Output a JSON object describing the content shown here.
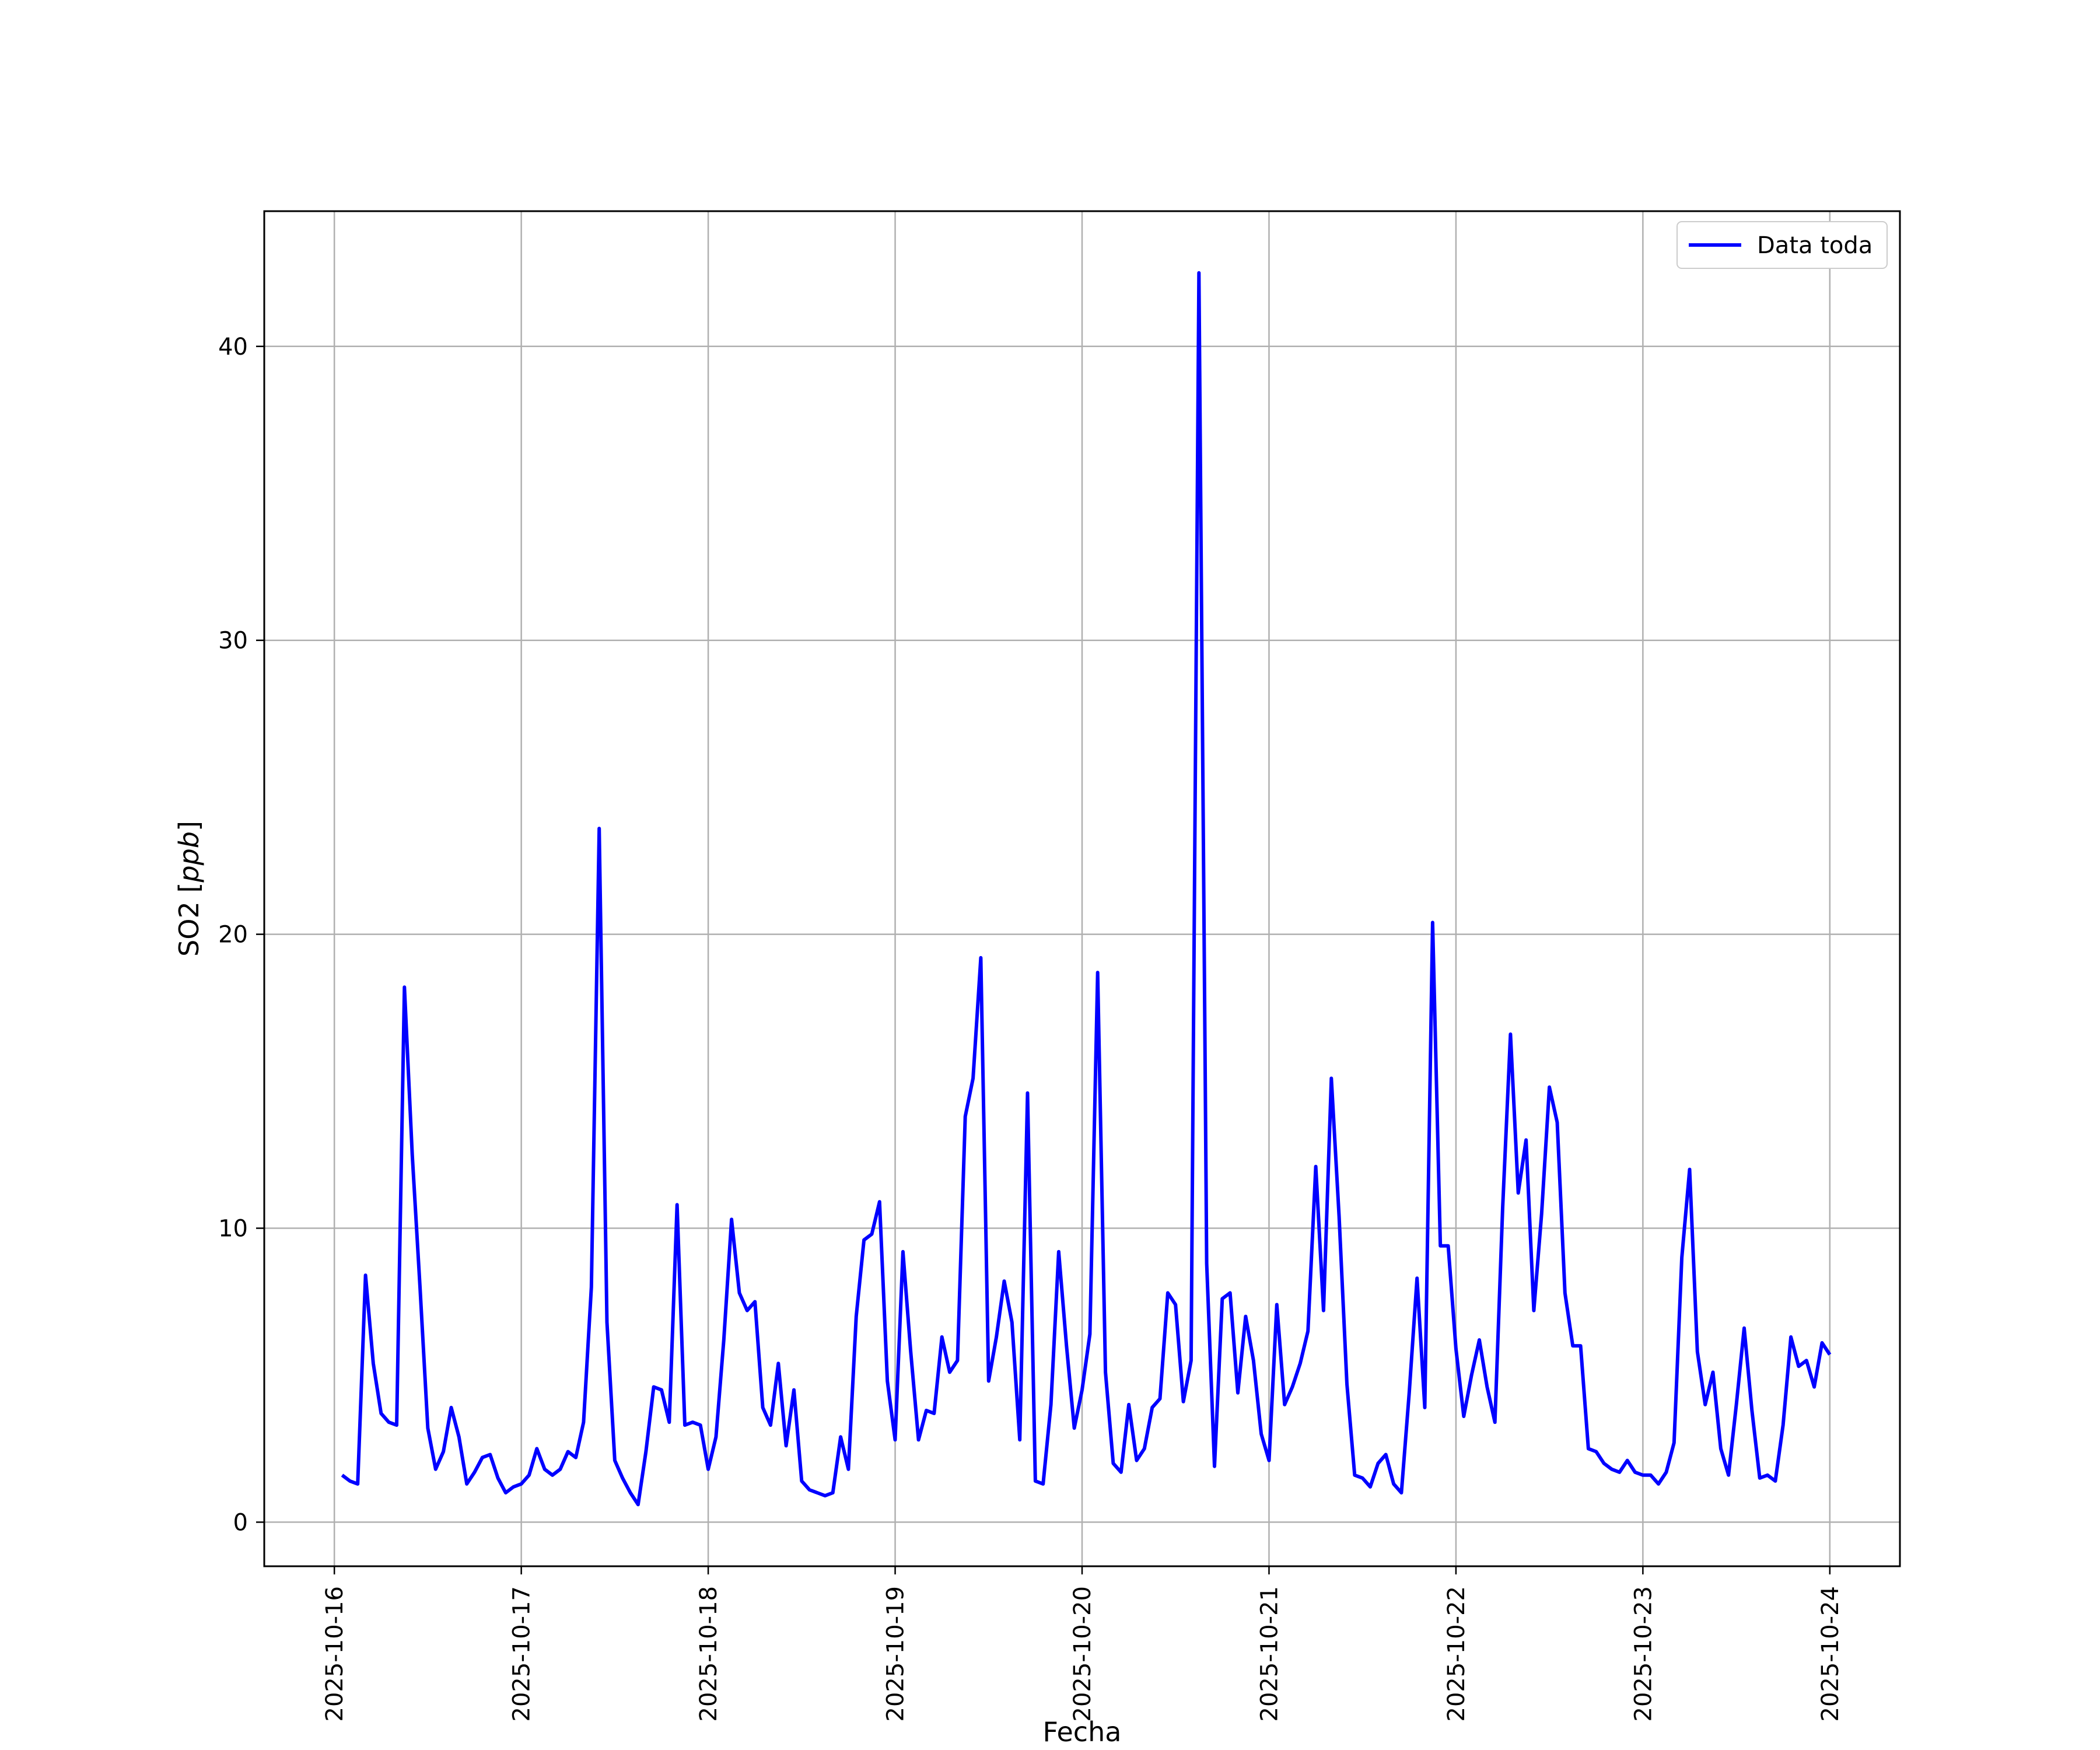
{
  "chart_data": {
    "type": "line",
    "xlabel": "Fecha",
    "ylabel": "SO2 [ppb]",
    "ylabel_parts": {
      "prefix": "SO2 [",
      "unit": "ppb",
      "suffix": "]"
    },
    "xlim": [
      "2025-10-15T15:00",
      "2025-10-24T09:00"
    ],
    "ylim": [
      -1.5,
      44.6
    ],
    "x_ticks": [
      "2025-10-16",
      "2025-10-17",
      "2025-10-18",
      "2025-10-19",
      "2025-10-20",
      "2025-10-21",
      "2025-10-22",
      "2025-10-23",
      "2025-10-24"
    ],
    "y_ticks": [
      0,
      10,
      20,
      30,
      40
    ],
    "grid": true,
    "legend_position": "top-right",
    "series_color": "#0000ff",
    "series": [
      {
        "name": "Data toda",
        "start": "2025-10-16T01:00",
        "interval_hours": 1,
        "values": [
          1.6,
          1.4,
          1.3,
          8.4,
          5.4,
          3.7,
          3.4,
          3.3,
          18.2,
          12.5,
          8.0,
          3.2,
          1.8,
          2.4,
          3.9,
          2.9,
          1.3,
          1.7,
          2.2,
          2.3,
          1.5,
          1.0,
          1.2,
          1.3,
          1.6,
          2.5,
          1.8,
          1.6,
          1.8,
          2.4,
          2.2,
          3.4,
          8.0,
          23.6,
          6.8,
          2.1,
          1.5,
          1.0,
          0.6,
          2.4,
          4.6,
          4.5,
          3.4,
          10.8,
          3.3,
          3.4,
          3.3,
          1.8,
          2.9,
          6.2,
          10.3,
          7.8,
          7.2,
          7.5,
          3.9,
          3.3,
          5.4,
          2.6,
          4.5,
          1.4,
          1.1,
          1.0,
          0.9,
          1.0,
          2.9,
          1.8,
          7.0,
          9.6,
          9.8,
          10.9,
          4.8,
          2.8,
          9.2,
          5.8,
          2.8,
          3.8,
          3.7,
          6.3,
          5.1,
          5.5,
          13.8,
          15.1,
          19.2,
          4.8,
          6.3,
          8.2,
          6.8,
          2.8,
          14.6,
          1.4,
          1.3,
          4.0,
          9.2,
          6.0,
          3.2,
          4.5,
          6.4,
          18.7,
          5.1,
          2.0,
          1.7,
          4.0,
          2.1,
          2.5,
          3.9,
          4.2,
          7.8,
          7.4,
          4.1,
          5.5,
          42.5,
          8.8,
          1.9,
          7.6,
          7.8,
          4.4,
          7.0,
          5.5,
          3.0,
          2.1,
          7.4,
          4.0,
          4.6,
          5.4,
          6.5,
          12.1,
          7.2,
          15.1,
          10.4,
          4.7,
          1.6,
          1.5,
          1.2,
          2.0,
          2.3,
          1.3,
          1.0,
          4.4,
          8.3,
          3.9,
          20.4,
          9.4,
          9.4,
          5.9,
          3.6,
          5.0,
          6.2,
          4.6,
          3.4,
          10.7,
          16.6,
          11.2,
          13.0,
          7.2,
          10.5,
          14.8,
          13.6,
          7.8,
          6.0,
          6.0,
          2.5,
          2.4,
          2.0,
          1.8,
          1.7,
          2.1,
          1.7,
          1.6,
          1.6,
          1.3,
          1.7,
          2.7,
          9.0,
          12.0,
          5.8,
          4.0,
          5.1,
          2.5,
          1.6,
          4.0,
          6.6,
          3.8,
          1.5,
          1.6,
          1.4,
          3.3,
          6.3,
          5.3,
          5.5,
          4.6,
          6.1,
          5.7
        ]
      }
    ]
  }
}
